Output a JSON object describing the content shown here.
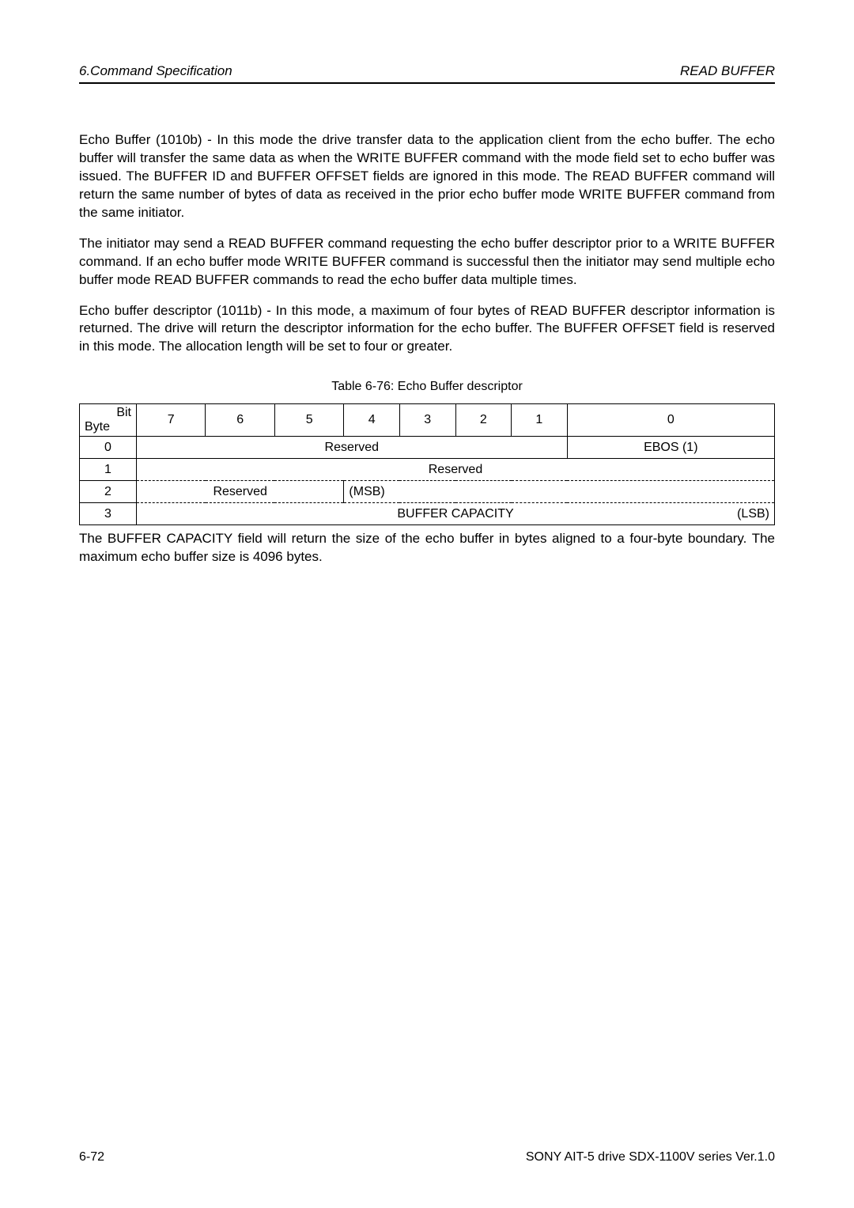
{
  "header": {
    "left": "6.Command Specification",
    "right": "READ BUFFER"
  },
  "paragraphs": {
    "p1_lead": "Echo Buffer (1010b)",
    "p1_rest": " - In this mode the drive transfer data to the application client from the echo buffer. The echo buffer will transfer the same data as when the WRITE BUFFER command with the mode field set to echo buffer was issued. The BUFFER ID and BUFFER OFFSET fields are ignored in this mode. The READ BUFFER command will return the same number of bytes of data as received in the prior echo buffer mode WRITE BUFFER command from the same initiator.",
    "p2": "The initiator may send a READ BUFFER command requesting the echo buffer descriptor prior to a WRITE BUFFER command. If an echo buffer mode WRITE BUFFER command is successful then the initiator may send multiple echo buffer mode READ BUFFER commands to read the echo buffer data multiple times.",
    "p3_lead": "Echo buffer descriptor (1011b)",
    "p3_rest": " - In this mode, a maximum of four bytes of READ BUFFER descriptor information is returned. The drive will return the descriptor information for the echo buffer. The BUFFER OFFSET field is reserved in this mode. The allocation length will be set to four or greater."
  },
  "table": {
    "caption": "Table 6-76: Echo Buffer descriptor",
    "bit_label": "Bit",
    "byte_label": "Byte",
    "bits": [
      "7",
      "6",
      "5",
      "4",
      "3",
      "2",
      "1",
      "0"
    ],
    "rows": {
      "r0_byte": "0",
      "r0_reserved": "Reserved",
      "r0_ebos": "EBOS (1)",
      "r1_byte": "1",
      "r1_reserved": "Reserved",
      "r2_byte": "2",
      "r2_reserved": "Reserved",
      "r2_msb": "(MSB)",
      "r3_byte": "3",
      "r3_capacity": "BUFFER CAPACITY",
      "r3_lsb": "(LSB)"
    }
  },
  "note": "The BUFFER CAPACITY field will return the size of the echo buffer in bytes aligned to a four-byte boundary. The maximum echo buffer size is 4096 bytes.",
  "footer": {
    "left": "6-72",
    "right": "SONY AIT-5 drive SDX-1100V series Ver.1.0"
  }
}
